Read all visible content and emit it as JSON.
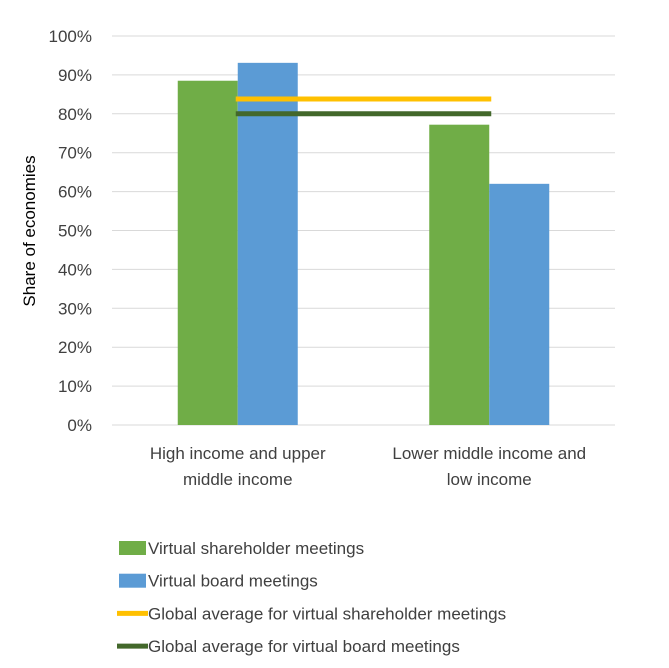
{
  "chart_data": {
    "type": "bar",
    "title": "",
    "xlabel": "",
    "ylabel": "Share of economies",
    "ylim": [
      0,
      100
    ],
    "y_ticks": [
      "0%",
      "10%",
      "20%",
      "30%",
      "40%",
      "50%",
      "60%",
      "70%",
      "80%",
      "90%",
      "100%"
    ],
    "categories": [
      [
        "High income and upper",
        "middle income"
      ],
      [
        "Lower middle income and",
        "low income"
      ]
    ],
    "series": [
      {
        "name": "Virtual shareholder meetings",
        "values": [
          88.5,
          77.2
        ],
        "color": "#70AD47"
      },
      {
        "name": "Virtual board meetings",
        "values": [
          93.1,
          62.0
        ],
        "color": "#5B9BD5"
      }
    ],
    "reference_lines": [
      {
        "name": "Global average for virtual shareholder meetings",
        "value": 83.8,
        "color": "#FFC000"
      },
      {
        "name": "Global average for virtual board meetings",
        "value": 80.0,
        "color": "#43682B"
      }
    ],
    "grid": true,
    "legend_position": "bottom"
  }
}
